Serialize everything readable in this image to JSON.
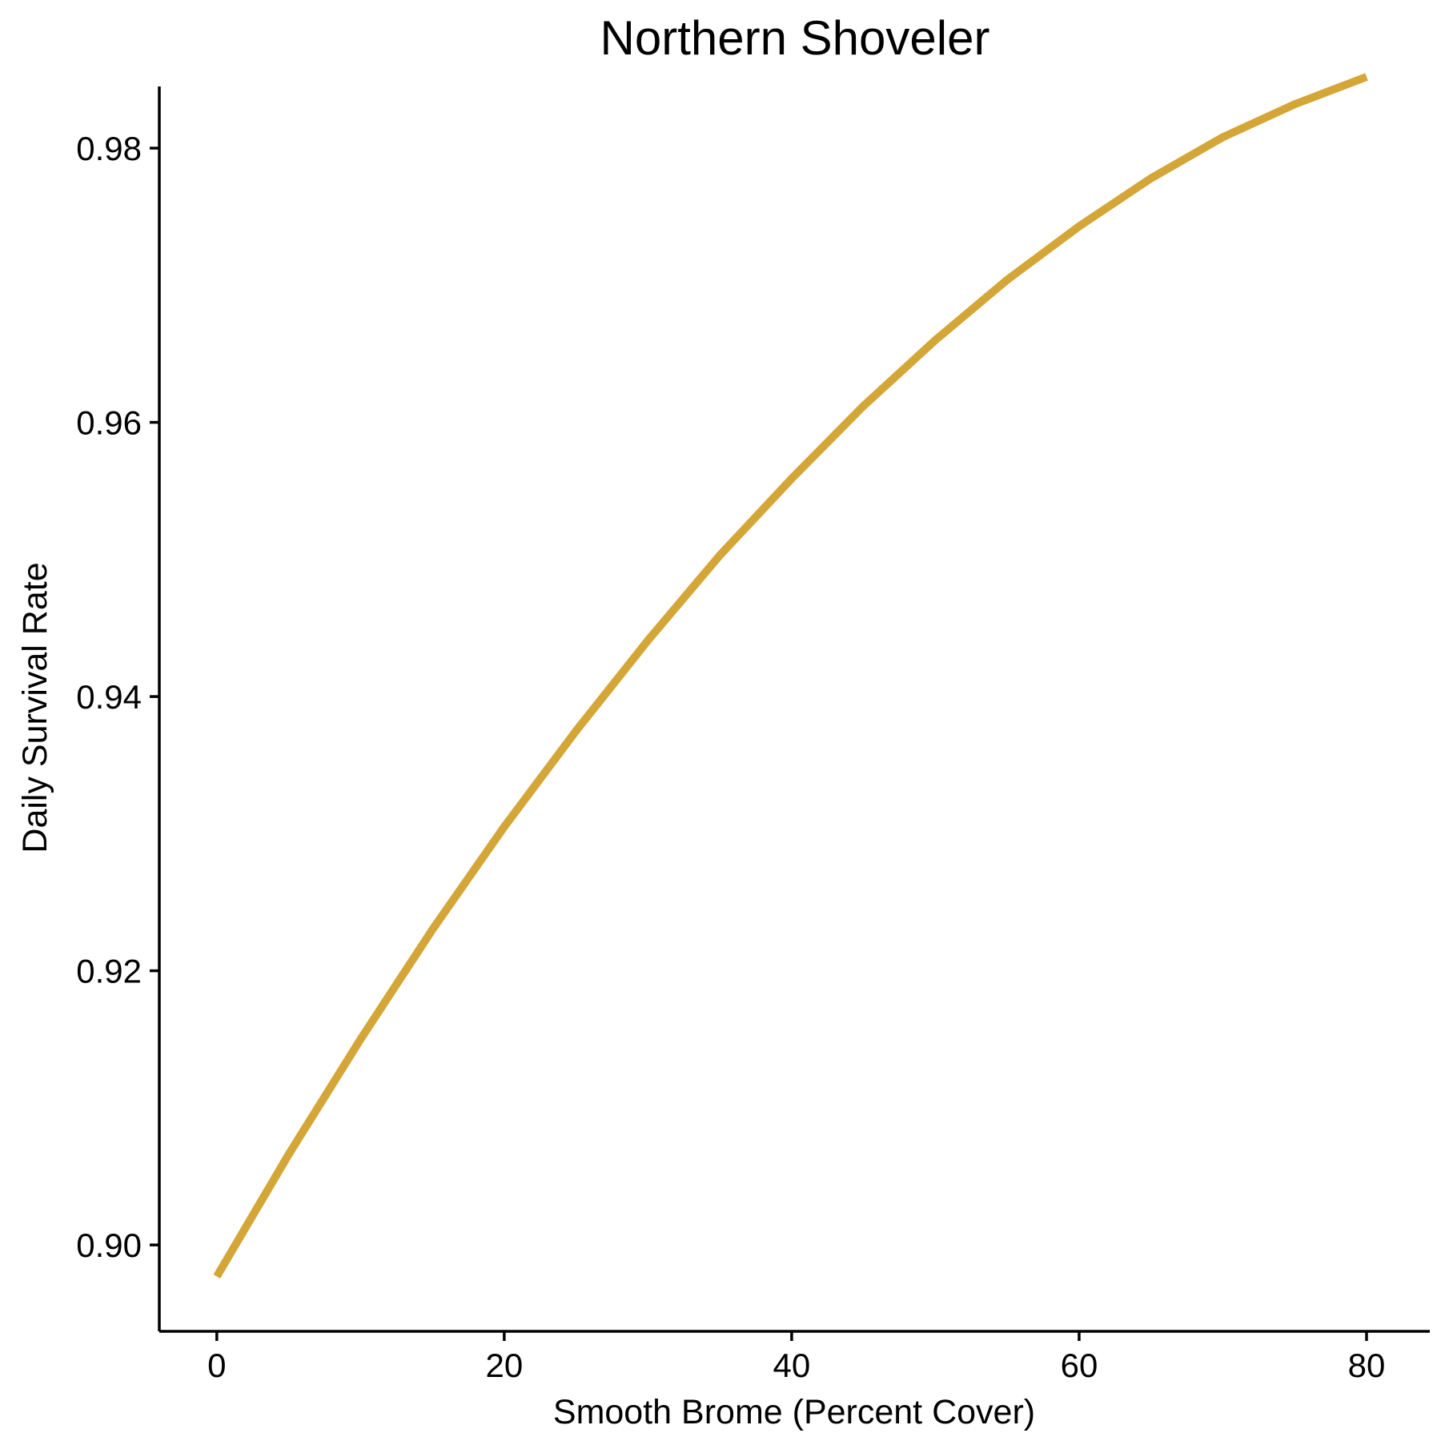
{
  "chart_data": {
    "type": "line",
    "title": "Northern Shoveler",
    "xlabel": "Smooth Brome (Percent Cover)",
    "ylabel": "Daily Survival Rate",
    "xlim": [
      -4,
      84.4
    ],
    "ylim": [
      0.8937,
      0.9845
    ],
    "x_ticks": [
      0,
      20,
      40,
      60,
      80
    ],
    "x_tick_labels": [
      "0",
      "20",
      "40",
      "60",
      "80"
    ],
    "y_ticks": [
      0.9,
      0.92,
      0.94,
      0.96,
      0.98
    ],
    "y_tick_labels": [
      "0.90",
      "0.92",
      "0.94",
      "0.96",
      "0.98"
    ],
    "grid": false,
    "legend": "none",
    "series": [
      {
        "color": "#D4A637",
        "x": [
          0,
          5,
          10,
          15,
          20,
          25,
          30,
          35,
          40,
          45,
          50,
          55,
          60,
          65,
          70,
          75,
          80
        ],
        "y": [
          0.8977,
          0.9066,
          0.915,
          0.923,
          0.9305,
          0.9375,
          0.9441,
          0.9503,
          0.9559,
          0.9612,
          0.966,
          0.9704,
          0.9743,
          0.9778,
          0.9808,
          0.9832,
          0.9852
        ]
      }
    ]
  }
}
